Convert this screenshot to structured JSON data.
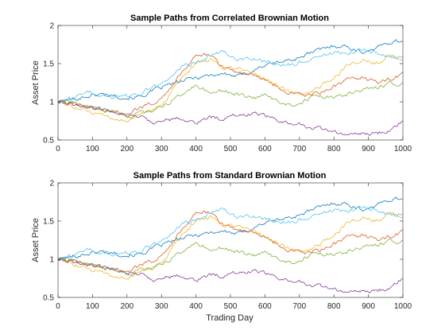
{
  "chart_data": [
    {
      "type": "line",
      "title": "Sample Paths from Correlated Brownian Motion",
      "xlabel": "",
      "ylabel": "Asset Price",
      "xlim": [
        0,
        1000
      ],
      "ylim": [
        0.5,
        2
      ],
      "xticks": [
        0,
        100,
        200,
        300,
        400,
        500,
        600,
        700,
        800,
        900,
        1000
      ],
      "yticks": [
        0.5,
        1,
        1.5,
        2
      ],
      "ytick_labels": [
        "0.5",
        "1",
        "1.5",
        "2"
      ],
      "grid": false,
      "series": [
        {
          "color": "#0072BD",
          "x": [
            0,
            40,
            80,
            120,
            160,
            200,
            240,
            280,
            320,
            360,
            400,
            440,
            480,
            520,
            560,
            600,
            640,
            680,
            720,
            760,
            800,
            840,
            880,
            920,
            960,
            1000
          ],
          "values": [
            1.0,
            1.03,
            1.07,
            1.1,
            1.09,
            1.05,
            1.07,
            1.15,
            1.22,
            1.27,
            1.32,
            1.35,
            1.37,
            1.33,
            1.4,
            1.48,
            1.52,
            1.55,
            1.62,
            1.68,
            1.74,
            1.72,
            1.65,
            1.7,
            1.78,
            1.8
          ]
        },
        {
          "color": "#D95319",
          "x": [
            0,
            40,
            80,
            120,
            160,
            200,
            240,
            280,
            320,
            360,
            400,
            440,
            480,
            520,
            560,
            600,
            640,
            680,
            720,
            760,
            800,
            840,
            880,
            920,
            960,
            1000
          ],
          "values": [
            1.0,
            0.97,
            0.93,
            0.9,
            0.87,
            0.86,
            0.92,
            1.0,
            1.15,
            1.4,
            1.62,
            1.6,
            1.45,
            1.4,
            1.35,
            1.3,
            1.18,
            1.1,
            1.08,
            1.12,
            1.2,
            1.28,
            1.32,
            1.25,
            1.3,
            1.35
          ]
        },
        {
          "color": "#EDB120",
          "x": [
            0,
            40,
            80,
            120,
            160,
            200,
            240,
            280,
            320,
            360,
            400,
            440,
            480,
            520,
            560,
            600,
            640,
            680,
            720,
            760,
            800,
            840,
            880,
            920,
            960,
            1000
          ],
          "values": [
            1.0,
            0.95,
            0.88,
            0.82,
            0.77,
            0.76,
            0.83,
            0.9,
            1.05,
            1.3,
            1.5,
            1.55,
            1.45,
            1.42,
            1.38,
            1.3,
            1.2,
            1.12,
            1.1,
            1.2,
            1.3,
            1.5,
            1.55,
            1.5,
            1.6,
            1.55
          ]
        },
        {
          "color": "#7E2F8E",
          "x": [
            0,
            40,
            80,
            120,
            160,
            200,
            240,
            280,
            320,
            360,
            400,
            440,
            480,
            520,
            560,
            600,
            640,
            680,
            720,
            760,
            800,
            840,
            880,
            920,
            960,
            1000
          ],
          "values": [
            1.0,
            0.97,
            0.93,
            0.9,
            0.87,
            0.84,
            0.8,
            0.73,
            0.77,
            0.78,
            0.72,
            0.8,
            0.78,
            0.82,
            0.85,
            0.82,
            0.75,
            0.72,
            0.68,
            0.65,
            0.6,
            0.57,
            0.58,
            0.6,
            0.62,
            0.76
          ]
        },
        {
          "color": "#77AC30",
          "x": [
            0,
            40,
            80,
            120,
            160,
            200,
            240,
            280,
            320,
            360,
            400,
            440,
            480,
            520,
            560,
            600,
            640,
            680,
            720,
            760,
            800,
            840,
            880,
            920,
            960,
            1000
          ],
          "values": [
            1.0,
            0.98,
            0.95,
            0.9,
            0.85,
            0.82,
            0.85,
            0.9,
            0.98,
            1.08,
            1.22,
            1.12,
            1.15,
            1.1,
            1.05,
            1.08,
            1.0,
            0.95,
            1.03,
            1.08,
            1.05,
            1.1,
            1.15,
            1.18,
            1.25,
            1.22
          ]
        },
        {
          "color": "#4DBEEE",
          "x": [
            0,
            40,
            80,
            120,
            160,
            200,
            240,
            280,
            320,
            360,
            400,
            440,
            480,
            520,
            560,
            600,
            640,
            680,
            720,
            760,
            800,
            840,
            880,
            920,
            960,
            1000
          ],
          "values": [
            1.0,
            1.05,
            1.15,
            1.1,
            1.05,
            1.08,
            1.1,
            1.2,
            1.3,
            1.45,
            1.52,
            1.6,
            1.65,
            1.55,
            1.58,
            1.52,
            1.5,
            1.48,
            1.55,
            1.6,
            1.65,
            1.62,
            1.7,
            1.65,
            1.58,
            1.6
          ]
        }
      ]
    },
    {
      "type": "line",
      "title": "Sample Paths from Standard Brownian Motion",
      "xlabel": "Trading Day",
      "ylabel": "Asset Price",
      "xlim": [
        0,
        1000
      ],
      "ylim": [
        0.5,
        2
      ],
      "xticks": [
        0,
        100,
        200,
        300,
        400,
        500,
        600,
        700,
        800,
        900,
        1000
      ],
      "yticks": [
        0.5,
        1,
        1.5,
        2
      ],
      "ytick_labels": [
        "0.5",
        "1",
        "1.5",
        "2"
      ],
      "grid": false,
      "series": [
        {
          "color": "#0072BD",
          "x": [
            0,
            40,
            80,
            120,
            160,
            200,
            240,
            280,
            320,
            360,
            400,
            440,
            480,
            520,
            560,
            600,
            640,
            680,
            720,
            760,
            800,
            840,
            880,
            920,
            960,
            1000
          ],
          "values": [
            1.0,
            1.03,
            1.07,
            1.1,
            1.09,
            1.05,
            1.07,
            1.15,
            1.22,
            1.27,
            1.32,
            1.35,
            1.37,
            1.33,
            1.4,
            1.48,
            1.52,
            1.55,
            1.62,
            1.68,
            1.74,
            1.72,
            1.65,
            1.7,
            1.78,
            1.8
          ]
        },
        {
          "color": "#D95319",
          "x": [
            0,
            40,
            80,
            120,
            160,
            200,
            240,
            280,
            320,
            360,
            400,
            440,
            480,
            520,
            560,
            600,
            640,
            680,
            720,
            760,
            800,
            840,
            880,
            920,
            960,
            1000
          ],
          "values": [
            1.0,
            0.97,
            0.93,
            0.9,
            0.87,
            0.86,
            0.92,
            1.0,
            1.15,
            1.4,
            1.62,
            1.6,
            1.45,
            1.4,
            1.35,
            1.3,
            1.18,
            1.1,
            1.08,
            1.12,
            1.2,
            1.28,
            1.32,
            1.25,
            1.3,
            1.35
          ]
        },
        {
          "color": "#EDB120",
          "x": [
            0,
            40,
            80,
            120,
            160,
            200,
            240,
            280,
            320,
            360,
            400,
            440,
            480,
            520,
            560,
            600,
            640,
            680,
            720,
            760,
            800,
            840,
            880,
            920,
            960,
            1000
          ],
          "values": [
            1.0,
            0.95,
            0.88,
            0.82,
            0.77,
            0.76,
            0.83,
            0.9,
            1.05,
            1.3,
            1.5,
            1.55,
            1.45,
            1.42,
            1.38,
            1.3,
            1.2,
            1.12,
            1.1,
            1.2,
            1.3,
            1.5,
            1.55,
            1.5,
            1.6,
            1.55
          ]
        },
        {
          "color": "#7E2F8E",
          "x": [
            0,
            40,
            80,
            120,
            160,
            200,
            240,
            280,
            320,
            360,
            400,
            440,
            480,
            520,
            560,
            600,
            640,
            680,
            720,
            760,
            800,
            840,
            880,
            920,
            960,
            1000
          ],
          "values": [
            1.0,
            0.97,
            0.93,
            0.9,
            0.87,
            0.84,
            0.8,
            0.73,
            0.77,
            0.78,
            0.72,
            0.8,
            0.78,
            0.82,
            0.85,
            0.82,
            0.75,
            0.72,
            0.68,
            0.65,
            0.6,
            0.57,
            0.58,
            0.6,
            0.62,
            0.76
          ]
        },
        {
          "color": "#77AC30",
          "x": [
            0,
            40,
            80,
            120,
            160,
            200,
            240,
            280,
            320,
            360,
            400,
            440,
            480,
            520,
            560,
            600,
            640,
            680,
            720,
            760,
            800,
            840,
            880,
            920,
            960,
            1000
          ],
          "values": [
            1.0,
            0.98,
            0.95,
            0.9,
            0.85,
            0.82,
            0.85,
            0.9,
            0.98,
            1.08,
            1.22,
            1.12,
            1.15,
            1.1,
            1.05,
            1.08,
            1.0,
            0.95,
            1.03,
            1.08,
            1.05,
            1.1,
            1.15,
            1.18,
            1.25,
            1.22
          ]
        },
        {
          "color": "#4DBEEE",
          "x": [
            0,
            40,
            80,
            120,
            160,
            200,
            240,
            280,
            320,
            360,
            400,
            440,
            480,
            520,
            560,
            600,
            640,
            680,
            720,
            760,
            800,
            840,
            880,
            920,
            960,
            1000
          ],
          "values": [
            1.0,
            1.05,
            1.15,
            1.1,
            1.05,
            1.08,
            1.1,
            1.2,
            1.3,
            1.45,
            1.52,
            1.6,
            1.65,
            1.55,
            1.58,
            1.52,
            1.5,
            1.48,
            1.55,
            1.6,
            1.65,
            1.62,
            1.7,
            1.65,
            1.58,
            1.6
          ]
        }
      ]
    }
  ]
}
